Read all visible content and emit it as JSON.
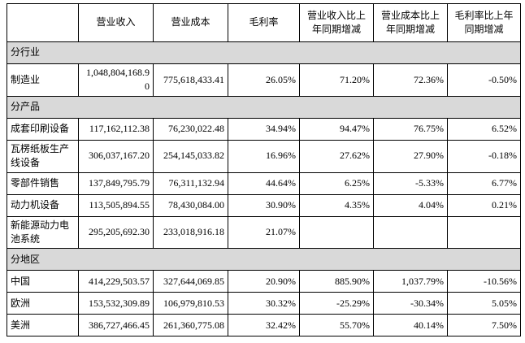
{
  "table": {
    "section_bg": "#d9d9d9",
    "border_color": "#000000",
    "columns": [
      "",
      "营业收入",
      "营业成本",
      "毛利率",
      "营业收入比上年同期增减",
      "营业成本比上年同期增减",
      "毛利率比上年同期增减"
    ],
    "rows": [
      {
        "type": "section",
        "label": "分行业"
      },
      {
        "type": "data",
        "label": "制造业",
        "values": [
          "1,048,804,168.90",
          "775,618,433.41",
          "26.05%",
          "71.20%",
          "72.36%",
          "-0.50%"
        ]
      },
      {
        "type": "section",
        "label": "分产品"
      },
      {
        "type": "data",
        "label": "成套印刷设备",
        "values": [
          "117,162,112.38",
          "76,230,022.48",
          "34.94%",
          "94.47%",
          "76.75%",
          "6.52%"
        ]
      },
      {
        "type": "data",
        "label": "瓦楞纸板生产线设备",
        "values": [
          "306,037,167.20",
          "254,145,033.82",
          "16.96%",
          "27.62%",
          "27.90%",
          "-0.18%"
        ]
      },
      {
        "type": "data",
        "label": "零部件销售",
        "values": [
          "137,849,795.79",
          "76,311,132.94",
          "44.64%",
          "6.25%",
          "-5.33%",
          "6.77%"
        ]
      },
      {
        "type": "data",
        "label": "动力机设备",
        "values": [
          "113,505,894.55",
          "78,430,084.00",
          "30.90%",
          "4.35%",
          "4.04%",
          "0.21%"
        ]
      },
      {
        "type": "data",
        "label": "新能源动力电池系统",
        "values": [
          "295,205,692.30",
          "233,018,916.18",
          "21.07%",
          "",
          "",
          ""
        ]
      },
      {
        "type": "section",
        "label": "分地区"
      },
      {
        "type": "data",
        "label": "中国",
        "values": [
          "414,229,503.57",
          "327,644,069.85",
          "20.90%",
          "885.90%",
          "1,037.79%",
          "-10.56%"
        ]
      },
      {
        "type": "data",
        "label": "欧洲",
        "values": [
          "153,532,309.89",
          "106,979,810.53",
          "30.32%",
          "-25.29%",
          "-30.34%",
          "5.05%"
        ]
      },
      {
        "type": "data",
        "label": "美洲",
        "values": [
          "386,727,466.45",
          "261,360,775.08",
          "32.42%",
          "55.70%",
          "40.14%",
          "7.50%"
        ]
      }
    ]
  }
}
